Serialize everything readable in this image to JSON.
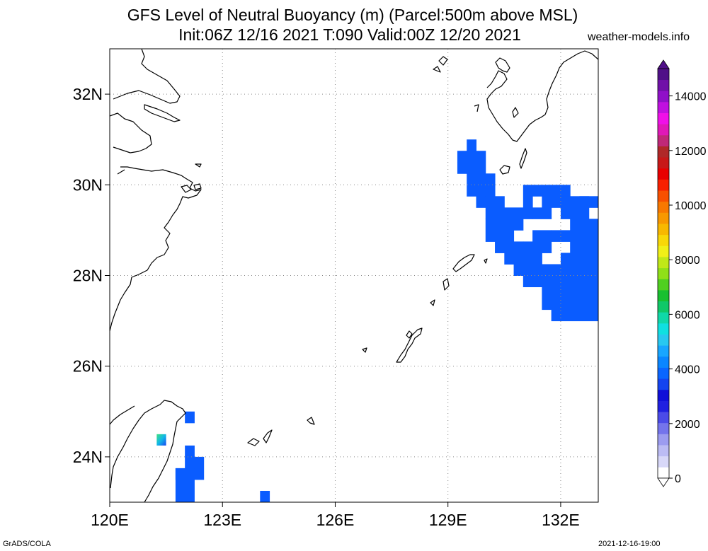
{
  "title": {
    "line1": "GFS Level of Neutral Buoyancy (m) (Parcel:500m above MSL)",
    "line2": "Init:06Z 12/16 2021 T:090 Valid:00Z 12/20 2021"
  },
  "credit": "weather-models.info",
  "footer": {
    "left": "GrADS/COLA",
    "right": "2021-12-16-19:00"
  },
  "map": {
    "lon_range": [
      120,
      133
    ],
    "lat_range": [
      23,
      33
    ],
    "lon_ticks": [
      {
        "value": 120,
        "label": "120E"
      },
      {
        "value": 123,
        "label": "123E"
      },
      {
        "value": 126,
        "label": "126E"
      },
      {
        "value": 129,
        "label": "129E"
      },
      {
        "value": 132,
        "label": "132E"
      }
    ],
    "lat_ticks": [
      {
        "value": 24,
        "label": "24N"
      },
      {
        "value": 26,
        "label": "26N"
      },
      {
        "value": 28,
        "label": "28N"
      },
      {
        "value": 30,
        "label": "30N"
      },
      {
        "value": 32,
        "label": "32N"
      }
    ],
    "grid": "dotted",
    "field_color": "#0a5cff",
    "coast_color": "#000000"
  },
  "colorbar": {
    "labels": [
      "0",
      "2000",
      "4000",
      "6000",
      "8000",
      "10000",
      "12000",
      "14000"
    ],
    "min": 0,
    "max": 15000,
    "colors": [
      "#ffffff",
      "#d8d8f8",
      "#bcbcf4",
      "#9c9cf0",
      "#7474ec",
      "#4b4be8",
      "#2020e0",
      "#0f0fd8",
      "#1444f0",
      "#0a66ff",
      "#0a86ff",
      "#18a6ff",
      "#28c8f0",
      "#10e0e0",
      "#10d8a8",
      "#10c868",
      "#18c030",
      "#50d020",
      "#90e018",
      "#c0e818",
      "#f0f018",
      "#f8d808",
      "#f8b800",
      "#f89800",
      "#f87800",
      "#f85000",
      "#f82000",
      "#e80000",
      "#c81818",
      "#b02828",
      "#c02878",
      "#e018b8",
      "#f010e8",
      "#c010e0",
      "#9010c8",
      "#7010a8",
      "#501088"
    ]
  },
  "field_cells": [
    [
      129.25,
      30.5,
      129.5,
      30.75
    ],
    [
      129.5,
      30.25,
      129.75,
      31.0
    ],
    [
      129.75,
      30.25,
      130.0,
      30.75
    ],
    [
      129.25,
      30.25,
      129.5,
      30.5
    ],
    [
      129.5,
      29.75,
      130.25,
      30.25
    ],
    [
      129.75,
      29.5,
      130.0,
      29.75
    ],
    [
      130.0,
      29.25,
      130.5,
      29.75
    ],
    [
      130.0,
      28.75,
      130.75,
      29.25
    ],
    [
      130.25,
      28.5,
      131.0,
      28.75
    ],
    [
      130.5,
      28.25,
      131.25,
      28.5
    ],
    [
      130.75,
      28.0,
      132.0,
      28.25
    ],
    [
      131.0,
      27.75,
      133.0,
      28.0
    ],
    [
      131.0,
      28.25,
      131.5,
      28.75
    ],
    [
      131.25,
      28.5,
      131.75,
      29.0
    ],
    [
      130.75,
      29.0,
      131.0,
      29.25
    ],
    [
      131.0,
      29.25,
      131.25,
      30.0
    ],
    [
      130.5,
      29.25,
      131.0,
      29.5
    ],
    [
      131.25,
      29.75,
      132.25,
      30.0
    ],
    [
      131.25,
      29.25,
      131.75,
      29.5
    ],
    [
      131.5,
      29.5,
      132.25,
      29.75
    ],
    [
      132.0,
      29.25,
      132.75,
      29.75
    ],
    [
      132.25,
      28.5,
      133.0,
      29.25
    ],
    [
      132.5,
      29.5,
      133.0,
      29.75
    ],
    [
      132.0,
      28.25,
      133.0,
      28.5
    ],
    [
      131.75,
      28.75,
      132.25,
      29.0
    ],
    [
      131.5,
      27.5,
      133.0,
      27.75
    ],
    [
      131.5,
      27.25,
      133.0,
      27.5
    ],
    [
      131.75,
      27.0,
      133.0,
      27.25
    ],
    [
      131.0,
      28.0,
      131.5,
      28.25
    ],
    [
      132.0,
      28.0,
      133.0,
      28.25
    ],
    [
      121.75,
      23.0,
      122.25,
      23.75
    ],
    [
      122.0,
      23.75,
      122.25,
      24.25
    ],
    [
      122.25,
      23.5,
      122.5,
      24.0
    ],
    [
      121.75,
      23.5,
      122.0,
      23.75
    ],
    [
      122.0,
      24.75,
      122.25,
      25.0
    ],
    [
      124.0,
      23.0,
      124.25,
      23.25
    ]
  ],
  "hotspot": [
    121.25,
    24.25,
    121.5,
    24.5
  ]
}
